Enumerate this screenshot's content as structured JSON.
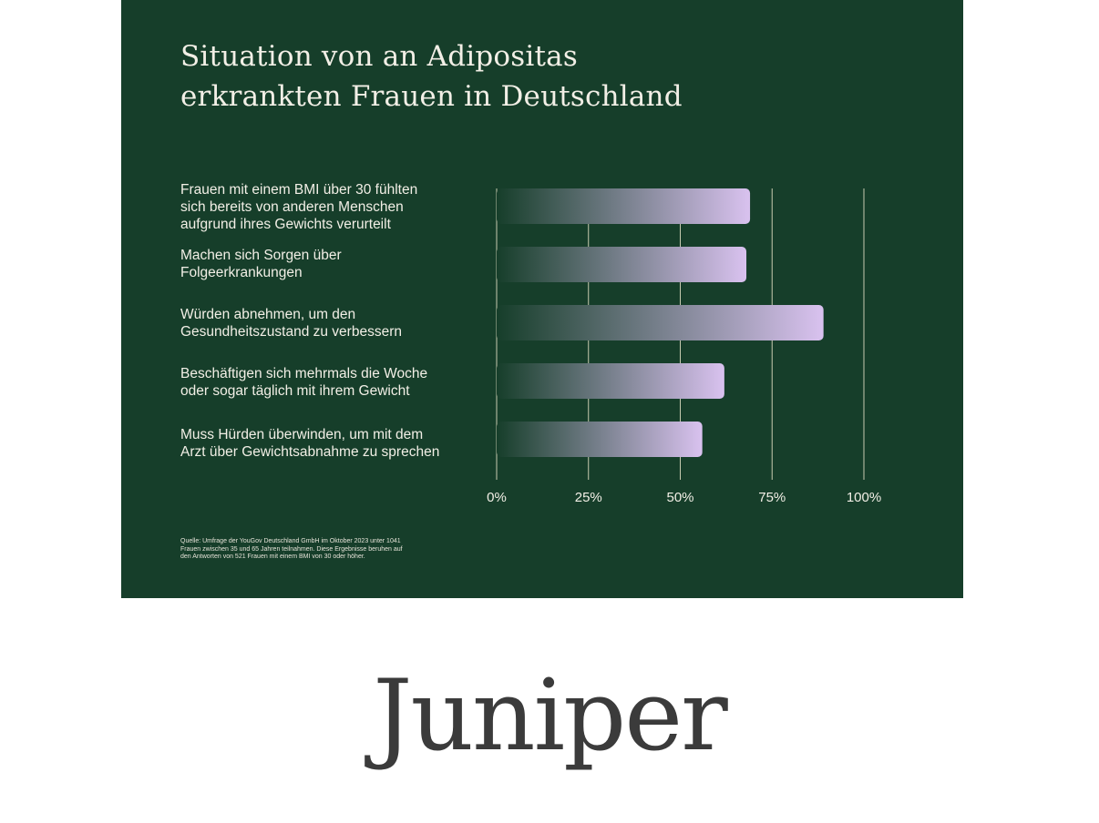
{
  "colors": {
    "panel_background": "#163e2a",
    "text": "#f2efe6",
    "gridline": "#e8e4c8",
    "bar_start": "#163e2a",
    "bar_end": "#d9c2ef",
    "logo": "#3b3b3b"
  },
  "title_lines": [
    "Situation von an Adipositas",
    "erkrankten Frauen in Deutschland"
  ],
  "chart_data": {
    "type": "bar",
    "orientation": "horizontal",
    "title": "Situation von an Adipositas erkrankten Frauen in Deutschland",
    "categories": [
      "Frauen mit einem BMI über 30 fühlten\nsich bereits von anderen Menschen\naufgrund ihres Gewichts verurteilt",
      "Machen sich Sorgen über\nFolgeerkrankungen",
      "Würden abnehmen, um den\nGesundheitszustand zu verbessern",
      "Beschäftigen sich mehrmals die Woche\noder sogar täglich mit ihrem Gewicht",
      "Muss Hürden überwinden, um mit dem\nArzt über Gewichtsabnahme zu sprechen"
    ],
    "values": [
      69,
      68,
      89,
      62,
      56
    ],
    "xlim": [
      0,
      100
    ],
    "ticks": [
      0,
      25,
      50,
      75,
      100
    ],
    "tick_labels": [
      "0%",
      "25%",
      "50%",
      "75%",
      "100%"
    ],
    "grid": true
  },
  "source_note": "Quelle: Umfrage der YouGov Deutschland GmbH im Oktober 2023 unter 1041 Frauen zwischen 35 und 65 Jahren teilnahmen. Diese Ergebnisse beruhen auf den Antworten von 521 Frauen mit einem BMI von 30 oder höher.",
  "logo_text": "Juniper"
}
